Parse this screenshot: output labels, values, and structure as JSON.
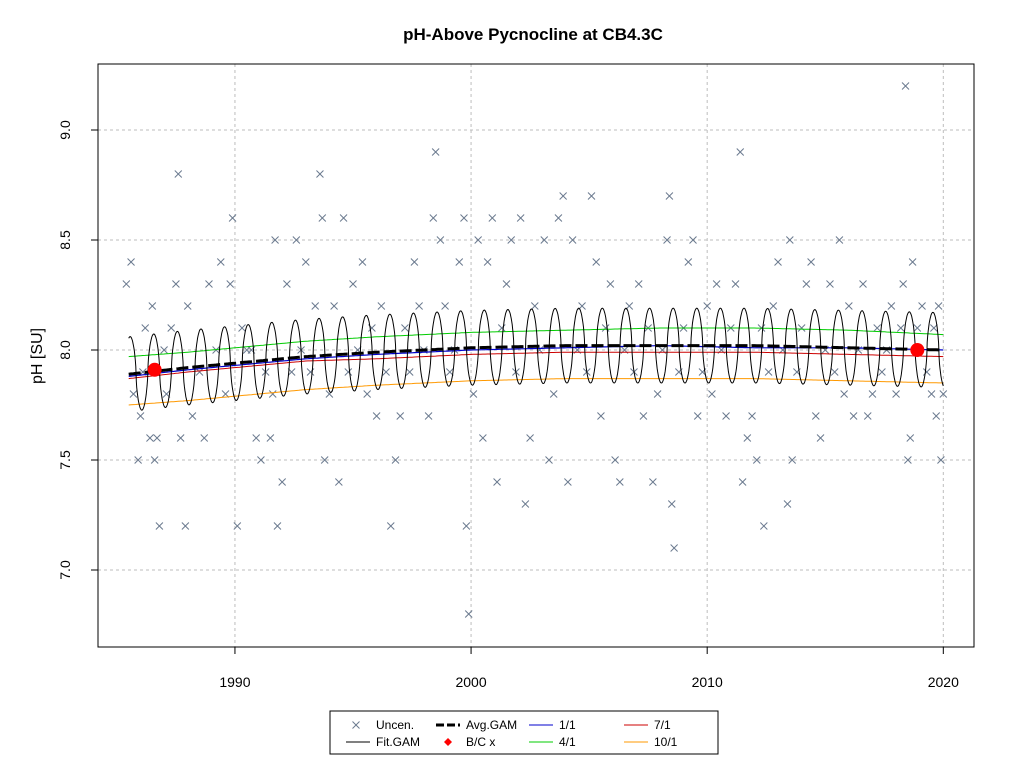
{
  "chart_data": {
    "type": "scatter",
    "title": "pH-Above Pycnocline at CB4.3C",
    "xlabel": "",
    "ylabel": "pH [SU]",
    "xlim": [
      1984.2,
      2021.3
    ],
    "ylim": [
      6.65,
      9.3
    ],
    "x_ticks": [
      1990,
      2000,
      2010,
      2020
    ],
    "x_tick_labels": [
      "1990",
      "2000",
      "2010",
      "2020"
    ],
    "y_ticks": [
      7.0,
      7.5,
      8.0,
      8.5,
      9.0
    ],
    "y_tick_labels": [
      "7.0",
      "7.5",
      "8.0",
      "8.5",
      "9.0"
    ],
    "grid": true,
    "legend_position": "bottom",
    "colors": {
      "uncensored": "#6b7a8f",
      "fit_gam": "#000000",
      "avg_gam": "#000000",
      "bc": "#ff0000",
      "jan": "#0000cc",
      "apr": "#00cc00",
      "jul": "#cc0000",
      "oct": "#ff9900"
    },
    "series": [
      {
        "name": "Uncen.",
        "kind": "scatter",
        "points": [
          [
            1985.4,
            8.3
          ],
          [
            1985.6,
            8.4
          ],
          [
            1985.7,
            7.8
          ],
          [
            1985.9,
            7.5
          ],
          [
            1986.0,
            7.7
          ],
          [
            1986.1,
            7.9
          ],
          [
            1986.2,
            8.1
          ],
          [
            1986.4,
            7.6
          ],
          [
            1986.5,
            8.2
          ],
          [
            1986.6,
            7.5
          ],
          [
            1986.7,
            7.6
          ],
          [
            1986.8,
            7.2
          ],
          [
            1987.0,
            8.0
          ],
          [
            1987.1,
            7.8
          ],
          [
            1987.3,
            8.1
          ],
          [
            1987.5,
            8.3
          ],
          [
            1987.6,
            8.8
          ],
          [
            1987.7,
            7.6
          ],
          [
            1987.9,
            7.2
          ],
          [
            1988.0,
            8.2
          ],
          [
            1988.2,
            7.7
          ],
          [
            1988.5,
            7.9
          ],
          [
            1988.7,
            7.6
          ],
          [
            1988.9,
            8.3
          ],
          [
            1989.2,
            8.0
          ],
          [
            1989.4,
            8.4
          ],
          [
            1989.6,
            7.8
          ],
          [
            1989.8,
            8.3
          ],
          [
            1989.9,
            8.6
          ],
          [
            1990.1,
            7.2
          ],
          [
            1990.3,
            8.1
          ],
          [
            1990.5,
            8.0
          ],
          [
            1990.7,
            8.0
          ],
          [
            1990.9,
            7.6
          ],
          [
            1991.1,
            7.5
          ],
          [
            1991.3,
            7.9
          ],
          [
            1991.5,
            7.6
          ],
          [
            1991.6,
            7.8
          ],
          [
            1991.7,
            8.5
          ],
          [
            1991.8,
            7.2
          ],
          [
            1992.0,
            7.4
          ],
          [
            1992.2,
            8.3
          ],
          [
            1992.4,
            7.9
          ],
          [
            1992.6,
            8.5
          ],
          [
            1992.8,
            8.0
          ],
          [
            1993.0,
            8.4
          ],
          [
            1993.2,
            7.9
          ],
          [
            1993.4,
            8.2
          ],
          [
            1993.6,
            8.8
          ],
          [
            1993.7,
            8.6
          ],
          [
            1993.8,
            7.5
          ],
          [
            1994.0,
            7.8
          ],
          [
            1994.2,
            8.2
          ],
          [
            1994.4,
            7.4
          ],
          [
            1994.6,
            8.6
          ],
          [
            1994.8,
            7.9
          ],
          [
            1995.0,
            8.3
          ],
          [
            1995.2,
            8.0
          ],
          [
            1995.4,
            8.4
          ],
          [
            1995.6,
            7.8
          ],
          [
            1995.8,
            8.1
          ],
          [
            1996.0,
            7.7
          ],
          [
            1996.2,
            8.2
          ],
          [
            1996.4,
            7.9
          ],
          [
            1996.6,
            7.2
          ],
          [
            1996.8,
            7.5
          ],
          [
            1997.0,
            7.7
          ],
          [
            1997.2,
            8.1
          ],
          [
            1997.4,
            7.9
          ],
          [
            1997.6,
            8.4
          ],
          [
            1997.8,
            8.2
          ],
          [
            1998.0,
            8.0
          ],
          [
            1998.2,
            7.7
          ],
          [
            1998.4,
            8.6
          ],
          [
            1998.5,
            8.9
          ],
          [
            1998.7,
            8.5
          ],
          [
            1998.9,
            8.2
          ],
          [
            1999.1,
            7.9
          ],
          [
            1999.3,
            8.0
          ],
          [
            1999.5,
            8.4
          ],
          [
            1999.7,
            8.6
          ],
          [
            1999.8,
            7.2
          ],
          [
            1999.9,
            6.8
          ],
          [
            2000.1,
            7.8
          ],
          [
            2000.3,
            8.5
          ],
          [
            2000.5,
            7.6
          ],
          [
            2000.7,
            8.4
          ],
          [
            2000.9,
            8.6
          ],
          [
            2001.1,
            7.4
          ],
          [
            2001.3,
            8.1
          ],
          [
            2001.5,
            8.3
          ],
          [
            2001.7,
            8.5
          ],
          [
            2001.9,
            7.9
          ],
          [
            2002.1,
            8.6
          ],
          [
            2002.3,
            7.3
          ],
          [
            2002.5,
            7.6
          ],
          [
            2002.7,
            8.2
          ],
          [
            2002.9,
            8.0
          ],
          [
            2003.1,
            8.5
          ],
          [
            2003.3,
            7.5
          ],
          [
            2003.5,
            7.8
          ],
          [
            2003.7,
            8.6
          ],
          [
            2003.9,
            8.7
          ],
          [
            2004.1,
            7.4
          ],
          [
            2004.3,
            8.5
          ],
          [
            2004.5,
            8.0
          ],
          [
            2004.7,
            8.2
          ],
          [
            2004.9,
            7.9
          ],
          [
            2005.1,
            8.7
          ],
          [
            2005.3,
            8.4
          ],
          [
            2005.5,
            7.7
          ],
          [
            2005.7,
            8.1
          ],
          [
            2005.9,
            8.3
          ],
          [
            2006.1,
            7.5
          ],
          [
            2006.3,
            7.4
          ],
          [
            2006.5,
            8.0
          ],
          [
            2006.7,
            8.2
          ],
          [
            2006.9,
            7.9
          ],
          [
            2007.1,
            8.3
          ],
          [
            2007.3,
            7.7
          ],
          [
            2007.5,
            8.1
          ],
          [
            2007.7,
            7.4
          ],
          [
            2007.9,
            7.8
          ],
          [
            2008.1,
            8.0
          ],
          [
            2008.3,
            8.5
          ],
          [
            2008.4,
            8.7
          ],
          [
            2008.5,
            7.3
          ],
          [
            2008.6,
            7.1
          ],
          [
            2008.8,
            7.9
          ],
          [
            2009.0,
            8.1
          ],
          [
            2009.2,
            8.4
          ],
          [
            2009.4,
            8.5
          ],
          [
            2009.6,
            7.7
          ],
          [
            2009.8,
            7.9
          ],
          [
            2010.0,
            8.2
          ],
          [
            2010.2,
            7.8
          ],
          [
            2010.4,
            8.3
          ],
          [
            2010.6,
            8.0
          ],
          [
            2010.8,
            7.7
          ],
          [
            2011.0,
            8.1
          ],
          [
            2011.2,
            8.3
          ],
          [
            2011.4,
            8.9
          ],
          [
            2011.5,
            7.4
          ],
          [
            2011.7,
            7.6
          ],
          [
            2011.9,
            7.7
          ],
          [
            2012.1,
            7.5
          ],
          [
            2012.3,
            8.1
          ],
          [
            2012.4,
            7.2
          ],
          [
            2012.6,
            7.9
          ],
          [
            2012.8,
            8.2
          ],
          [
            2013.0,
            8.4
          ],
          [
            2013.2,
            8.0
          ],
          [
            2013.4,
            7.3
          ],
          [
            2013.5,
            8.5
          ],
          [
            2013.6,
            7.5
          ],
          [
            2013.8,
            7.9
          ],
          [
            2014.0,
            8.1
          ],
          [
            2014.2,
            8.3
          ],
          [
            2014.4,
            8.4
          ],
          [
            2014.6,
            7.7
          ],
          [
            2014.8,
            7.6
          ],
          [
            2015.0,
            8.0
          ],
          [
            2015.2,
            8.3
          ],
          [
            2015.4,
            7.9
          ],
          [
            2015.6,
            8.5
          ],
          [
            2015.8,
            7.8
          ],
          [
            2016.0,
            8.2
          ],
          [
            2016.2,
            7.7
          ],
          [
            2016.4,
            8.0
          ],
          [
            2016.6,
            8.3
          ],
          [
            2016.8,
            7.7
          ],
          [
            2017.0,
            7.8
          ],
          [
            2017.2,
            8.1
          ],
          [
            2017.4,
            7.9
          ],
          [
            2017.6,
            8.0
          ],
          [
            2017.8,
            8.2
          ],
          [
            2018.0,
            7.8
          ],
          [
            2018.2,
            8.1
          ],
          [
            2018.3,
            8.3
          ],
          [
            2018.4,
            9.2
          ],
          [
            2018.5,
            7.5
          ],
          [
            2018.6,
            7.6
          ],
          [
            2018.7,
            8.4
          ],
          [
            2018.9,
            8.1
          ],
          [
            2019.1,
            8.2
          ],
          [
            2019.3,
            7.9
          ],
          [
            2019.5,
            7.8
          ],
          [
            2019.6,
            8.1
          ],
          [
            2019.7,
            7.7
          ],
          [
            2019.8,
            8.2
          ],
          [
            2019.9,
            7.5
          ],
          [
            2020.0,
            7.8
          ]
        ]
      },
      {
        "name": "Fit.GAM",
        "kind": "line",
        "start": 1985.5,
        "end": 2020.0,
        "amplitude": 0.17,
        "base": "avg_gam"
      },
      {
        "name": "Avg.GAM",
        "kind": "line",
        "x": [
          1985.5,
          1988,
          1990,
          1993,
          1996,
          2000,
          2004,
          2008,
          2012,
          2016,
          2020
        ],
        "y": [
          7.89,
          7.92,
          7.94,
          7.97,
          7.99,
          8.01,
          8.02,
          8.02,
          8.02,
          8.01,
          8.0
        ]
      },
      {
        "name": "B/C x",
        "kind": "scatter",
        "points": [
          [
            1986.6,
            7.91
          ],
          [
            2018.9,
            8.0
          ]
        ]
      },
      {
        "name": "1/1",
        "kind": "line",
        "x": [
          1985.5,
          1988,
          1990,
          1993,
          1996,
          2000,
          2004,
          2008,
          2012,
          2016,
          2020
        ],
        "y": [
          7.88,
          7.91,
          7.93,
          7.96,
          7.98,
          8.0,
          8.01,
          8.02,
          8.01,
          8.01,
          8.0
        ]
      },
      {
        "name": "4/1",
        "kind": "line",
        "x": [
          1985.5,
          1988,
          1990,
          1993,
          1996,
          2000,
          2004,
          2008,
          2012,
          2016,
          2020
        ],
        "y": [
          7.97,
          7.99,
          8.01,
          8.04,
          8.06,
          8.08,
          8.09,
          8.1,
          8.1,
          8.09,
          8.07
        ]
      },
      {
        "name": "7/1",
        "kind": "line",
        "x": [
          1985.5,
          1988,
          1990,
          1993,
          1996,
          2000,
          2004,
          2008,
          2012,
          2016,
          2020
        ],
        "y": [
          7.87,
          7.9,
          7.92,
          7.95,
          7.96,
          7.98,
          7.99,
          7.99,
          7.99,
          7.98,
          7.97
        ]
      },
      {
        "name": "10/1",
        "kind": "line",
        "x": [
          1985.5,
          1988,
          1990,
          1993,
          1996,
          2000,
          2004,
          2008,
          2012,
          2016,
          2020
        ],
        "y": [
          7.75,
          7.77,
          7.79,
          7.82,
          7.84,
          7.86,
          7.87,
          7.87,
          7.87,
          7.86,
          7.85
        ]
      }
    ],
    "legend": [
      {
        "label": "Uncen.",
        "symbol": "cross",
        "color": "#6b7a8f"
      },
      {
        "label": "Avg.GAM",
        "symbol": "dash",
        "color": "#000000"
      },
      {
        "label": "1/1",
        "symbol": "line",
        "color": "#0000cc"
      },
      {
        "label": "7/1",
        "symbol": "line",
        "color": "#cc0000"
      },
      {
        "label": "Fit.GAM",
        "symbol": "line",
        "color": "#000000"
      },
      {
        "label": "B/C x",
        "symbol": "diamond",
        "color": "#ff0000"
      },
      {
        "label": "4/1",
        "symbol": "line",
        "color": "#00cc00"
      },
      {
        "label": "10/1",
        "symbol": "line",
        "color": "#ff9900"
      }
    ]
  }
}
